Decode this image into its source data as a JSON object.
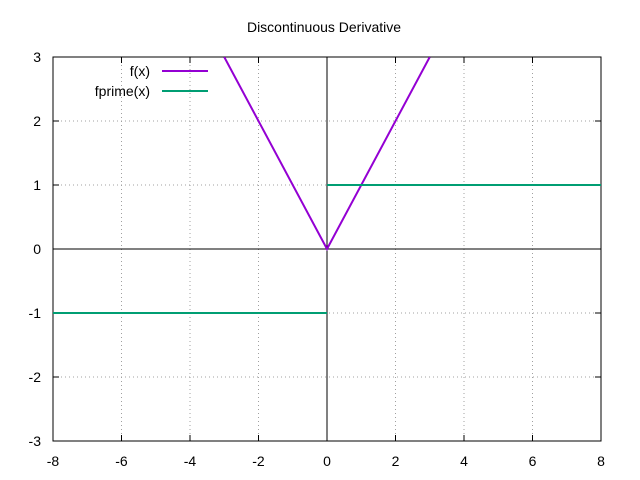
{
  "chart_data": {
    "type": "line",
    "title": "Discontinuous Derivative",
    "xlim": [
      -8,
      8
    ],
    "ylim": [
      -3,
      3
    ],
    "xticks": [
      "-8",
      "-6",
      "-4",
      "-2",
      "0",
      "2",
      "4",
      "6",
      "8"
    ],
    "yticks": [
      "-3",
      "-2",
      "-1",
      "0",
      "1",
      "2",
      "3"
    ],
    "grid": true,
    "legend_position": "top-left",
    "series": [
      {
        "name": "f(x)",
        "color": "#9400d3",
        "segments": [
          [
            [
              -3,
              3
            ],
            [
              0,
              0
            ],
            [
              3,
              3
            ]
          ]
        ]
      },
      {
        "name": "fprime(x)",
        "color": "#009e73",
        "segments": [
          [
            [
              -8,
              -1
            ],
            [
              0,
              -1
            ]
          ],
          [
            [
              0,
              1
            ],
            [
              8,
              1
            ]
          ]
        ]
      }
    ]
  }
}
